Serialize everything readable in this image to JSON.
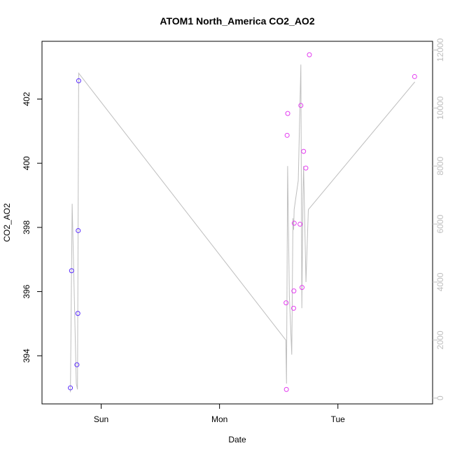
{
  "chart_data": {
    "type": "scatter",
    "title": "ATOM1 North_America CO2_AO2",
    "xlabel": "Date",
    "ylabel": "CO2_AO2",
    "x_ticks": [
      {
        "label": "Sun",
        "value": 1.0
      },
      {
        "label": "Mon",
        "value": 2.0
      },
      {
        "label": "Tue",
        "value": 3.0
      }
    ],
    "xlim": [
      0.5,
      3.8
    ],
    "ylim": [
      392.5,
      403.8
    ],
    "y_ticks": [
      "394",
      "396",
      "398",
      "400",
      "402"
    ],
    "y2lim": [
      -200,
      12300
    ],
    "y2_ticks": [
      "0",
      "2000",
      "4000",
      "6000",
      "8000",
      "10000",
      "12000"
    ],
    "grid": false,
    "legend": "none",
    "colors": {
      "line": "#bebebe",
      "early_points": "#5a2bff",
      "late_points": "#e33cf0",
      "axes": "#000000",
      "right_axis": "#bebebe"
    },
    "points": [
      {
        "x": 0.74,
        "y": 393.0,
        "series": "early"
      },
      {
        "x": 0.75,
        "y": 396.65,
        "series": "early"
      },
      {
        "x": 0.795,
        "y": 393.72,
        "series": "early"
      },
      {
        "x": 0.803,
        "y": 395.32,
        "series": "early"
      },
      {
        "x": 0.806,
        "y": 397.9,
        "series": "early"
      },
      {
        "x": 0.81,
        "y": 402.57,
        "series": "early"
      },
      {
        "x": 2.562,
        "y": 395.65,
        "series": "late"
      },
      {
        "x": 2.565,
        "y": 392.95,
        "series": "late"
      },
      {
        "x": 2.571,
        "y": 400.87,
        "series": "late"
      },
      {
        "x": 2.576,
        "y": 401.55,
        "series": "late"
      },
      {
        "x": 2.626,
        "y": 395.48,
        "series": "late"
      },
      {
        "x": 2.628,
        "y": 396.02,
        "series": "late"
      },
      {
        "x": 2.631,
        "y": 398.13,
        "series": "late"
      },
      {
        "x": 2.68,
        "y": 398.1,
        "series": "late"
      },
      {
        "x": 2.687,
        "y": 401.8,
        "series": "late"
      },
      {
        "x": 2.697,
        "y": 396.13,
        "series": "late"
      },
      {
        "x": 2.71,
        "y": 400.37,
        "series": "late"
      },
      {
        "x": 2.729,
        "y": 399.85,
        "series": "late"
      },
      {
        "x": 2.759,
        "y": 403.38,
        "series": "late"
      },
      {
        "x": 3.648,
        "y": 402.7,
        "series": "late"
      }
    ],
    "line": {
      "axis": "right",
      "x": [
        0.74,
        0.755,
        0.79,
        0.8,
        0.81,
        2.56,
        2.566,
        2.575,
        2.59,
        2.61,
        2.62,
        2.626,
        2.63,
        2.665,
        2.687,
        2.695,
        2.705,
        2.71,
        2.73,
        2.75,
        3.65
      ],
      "y": [
        200,
        6700,
        500,
        300,
        11200,
        2000,
        500,
        8000,
        3500,
        1500,
        6200,
        5800,
        6500,
        7500,
        11500,
        3100,
        7000,
        8000,
        4000,
        6500,
        10900
      ]
    }
  }
}
